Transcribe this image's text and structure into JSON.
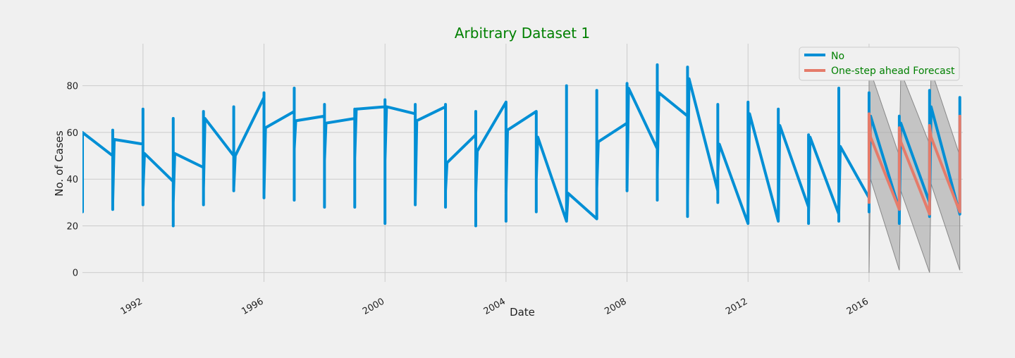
{
  "colors": {
    "background": "#f0f0f0",
    "grid": "#cbcbcb",
    "axis_text": "#222222",
    "title": "#008000",
    "observed": "#008fd5",
    "forecast": "#e57b6a",
    "confidence_band": "#a0a0a0"
  },
  "chart_data": {
    "type": "line",
    "title": "Arbitrary Dataset 1",
    "xlabel": "Date",
    "ylabel": "No. of Cases",
    "xlim": [
      1990.0,
      2019.1
    ],
    "ylim": [
      -4,
      98
    ],
    "xticks": [
      1992,
      1996,
      2000,
      2004,
      2008,
      2012,
      2016
    ],
    "xtick_labels": [
      "1992",
      "1996",
      "2000",
      "2004",
      "2008",
      "2012",
      "2016"
    ],
    "yticks": [
      0,
      20,
      40,
      60,
      80
    ],
    "ytick_labels": [
      "0",
      "20",
      "40",
      "60",
      "80"
    ],
    "grid": true,
    "legend": {
      "position": "top-right",
      "entries": [
        "No",
        "One-step ahead Forecast"
      ]
    },
    "series": [
      {
        "name": "No",
        "x": [
          1990.0,
          1990.0,
          1991.0,
          1991.0,
          1991.0,
          1991.0,
          1991.05,
          1992.0,
          1992.0,
          1992.0,
          1992.0,
          1992.05,
          1993.0,
          1993.0,
          1993.0,
          1993.0,
          1993.05,
          1994.0,
          1994.0,
          1994.0,
          1994.0,
          1994.05,
          1995.0,
          1995.0,
          1995.0,
          1995.0,
          1995.05,
          1996.0,
          1996.0,
          1996.0,
          1996.0,
          1996.05,
          1997.0,
          1997.0,
          1997.0,
          1997.0,
          1997.05,
          1998.0,
          1998.0,
          1998.0,
          1998.0,
          1998.05,
          1999.0,
          1999.0,
          1999.0,
          1999.0,
          1999.05,
          2000.0,
          2000.0,
          2000.0,
          2000.0,
          2000.05,
          2001.0,
          2001.0,
          2001.0,
          2001.0,
          2001.05,
          2002.0,
          2002.0,
          2002.0,
          2002.0,
          2002.05,
          2003.0,
          2003.0,
          2003.0,
          2003.0,
          2003.05,
          2004.0,
          2004.0,
          2004.0,
          2004.0,
          2004.05,
          2005.0,
          2005.0,
          2005.0,
          2005.0,
          2005.05,
          2006.0,
          2006.0,
          2006.0,
          2006.0,
          2006.05,
          2007.0,
          2007.0,
          2007.0,
          2007.0,
          2007.05,
          2008.0,
          2008.0,
          2008.0,
          2008.0,
          2008.05,
          2009.0,
          2009.0,
          2009.0,
          2009.0,
          2009.05,
          2010.0,
          2010.0,
          2010.0,
          2010.0,
          2010.05,
          2011.0,
          2011.0,
          2011.0,
          2011.0,
          2011.05,
          2012.0,
          2012.0,
          2012.0,
          2012.0,
          2012.05,
          2013.0,
          2013.0,
          2013.0,
          2013.0,
          2013.05,
          2014.0,
          2014.0,
          2014.0,
          2014.0,
          2014.05,
          2015.0,
          2015.0,
          2015.0,
          2015.0,
          2015.05,
          2016.0,
          2016.0,
          2016.0,
          2016.0,
          2016.05,
          2017.0,
          2017.0,
          2017.0,
          2017.0,
          2017.05,
          2018.0,
          2018.0,
          2018.0,
          2018.0,
          2018.05,
          2019.0,
          2019.0,
          2019.0
        ],
        "values": [
          26,
          60,
          50,
          27,
          61,
          30,
          57,
          55,
          29,
          70,
          35,
          51,
          39,
          20,
          66,
          30,
          51,
          45,
          29,
          69,
          36,
          66,
          50,
          35,
          71,
          36,
          50,
          75,
          32,
          77,
          34,
          62,
          69,
          31,
          79,
          53,
          65,
          67,
          28,
          72,
          48,
          64,
          66,
          28,
          70,
          49,
          70,
          71,
          21,
          74,
          48,
          71,
          68,
          29,
          72,
          31,
          65,
          71,
          28,
          72,
          35,
          47,
          59,
          20,
          69,
          34,
          52,
          73,
          22,
          73,
          34,
          61,
          69,
          26,
          67,
          40,
          58,
          22,
          22,
          80,
          22,
          34,
          23,
          23,
          78,
          36,
          56,
          64,
          35,
          81,
          36,
          79,
          53,
          31,
          89,
          42,
          77,
          67,
          24,
          88,
          32,
          83,
          35,
          30,
          72,
          43,
          55,
          21,
          21,
          73,
          28,
          68,
          22,
          22,
          70,
          23,
          63,
          28,
          21,
          59,
          25,
          58,
          25,
          22,
          79,
          26,
          54,
          32,
          26,
          77,
          30,
          67,
          27,
          21,
          67,
          23,
          64,
          30,
          24,
          78,
          26,
          71,
          25,
          25,
          75
        ]
      },
      {
        "name": "One-step ahead Forecast",
        "x": [
          2016.0,
          2016.0,
          2016.05,
          2017.0,
          2017.0,
          2017.05,
          2018.0,
          2018.0,
          2018.05,
          2019.0,
          2019.0
        ],
        "values": [
          30,
          68,
          58,
          27,
          62,
          56,
          25,
          63,
          58,
          26,
          67
        ]
      }
    ],
    "confidence_band": {
      "x": [
        2016.0,
        2016.05,
        2017.0,
        2017.05,
        2018.0,
        2018.05,
        2019.0
      ],
      "lower": [
        0,
        40,
        1,
        35,
        0,
        38,
        1
      ],
      "upper": [
        91,
        86,
        50,
        86,
        55,
        87,
        50
      ]
    }
  }
}
